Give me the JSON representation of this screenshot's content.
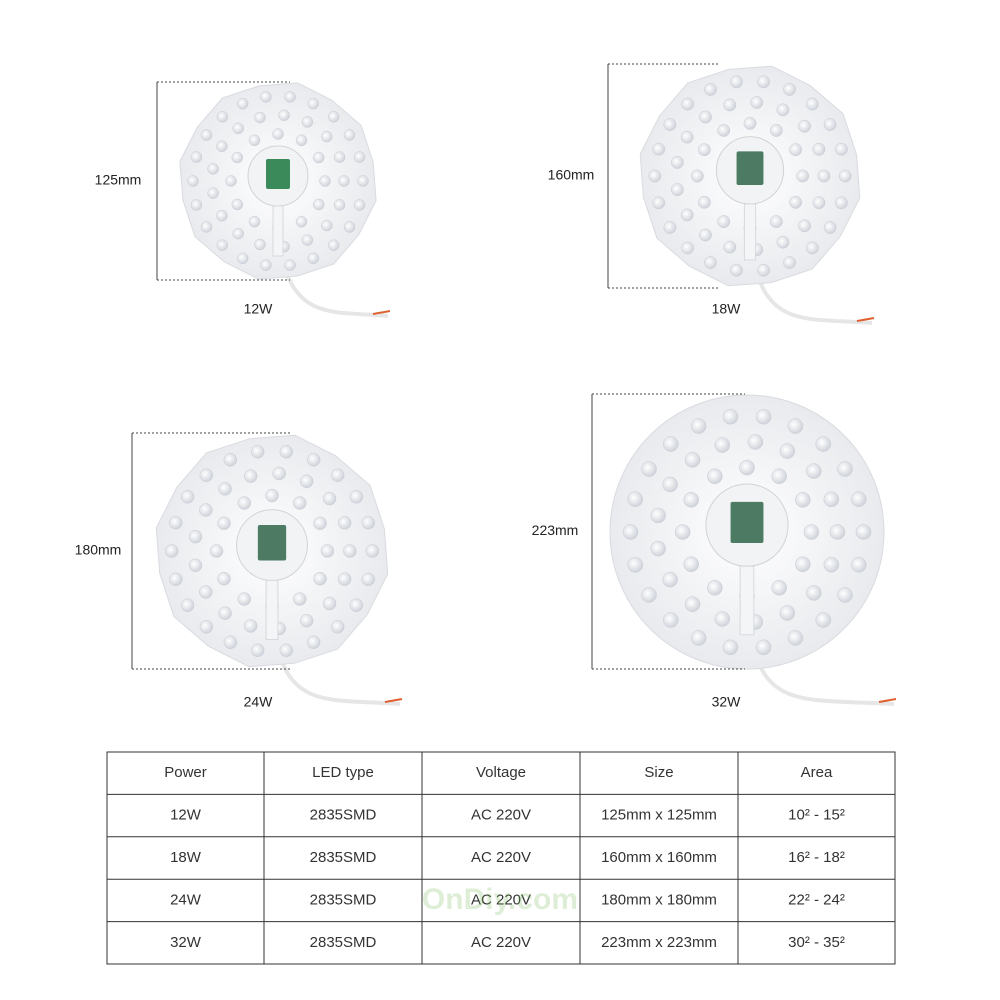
{
  "products": [
    {
      "size": "125mm",
      "power": "12W"
    },
    {
      "size": "160mm",
      "power": "18W"
    },
    {
      "size": "180mm",
      "power": "24W"
    },
    {
      "size": "223mm",
      "power": "32W"
    }
  ],
  "table": {
    "header": [
      "Power",
      "LED type",
      "Voltage",
      "Size",
      "Area"
    ],
    "rows": [
      [
        "12W",
        "2835SMD",
        "AC 220V",
        "125mm x 125mm",
        "10² - 15²"
      ],
      [
        "18W",
        "2835SMD",
        "AC 220V",
        "160mm x 160mm",
        "16² - 18²"
      ],
      [
        "24W",
        "2835SMD",
        "AC 220V",
        "180mm x 180mm",
        "22² - 24²"
      ],
      [
        "32W",
        "2835SMD",
        "AC 220V",
        "223mm x 223mm",
        "30² - 35²"
      ]
    ]
  },
  "watermark": "OnDiy.com"
}
